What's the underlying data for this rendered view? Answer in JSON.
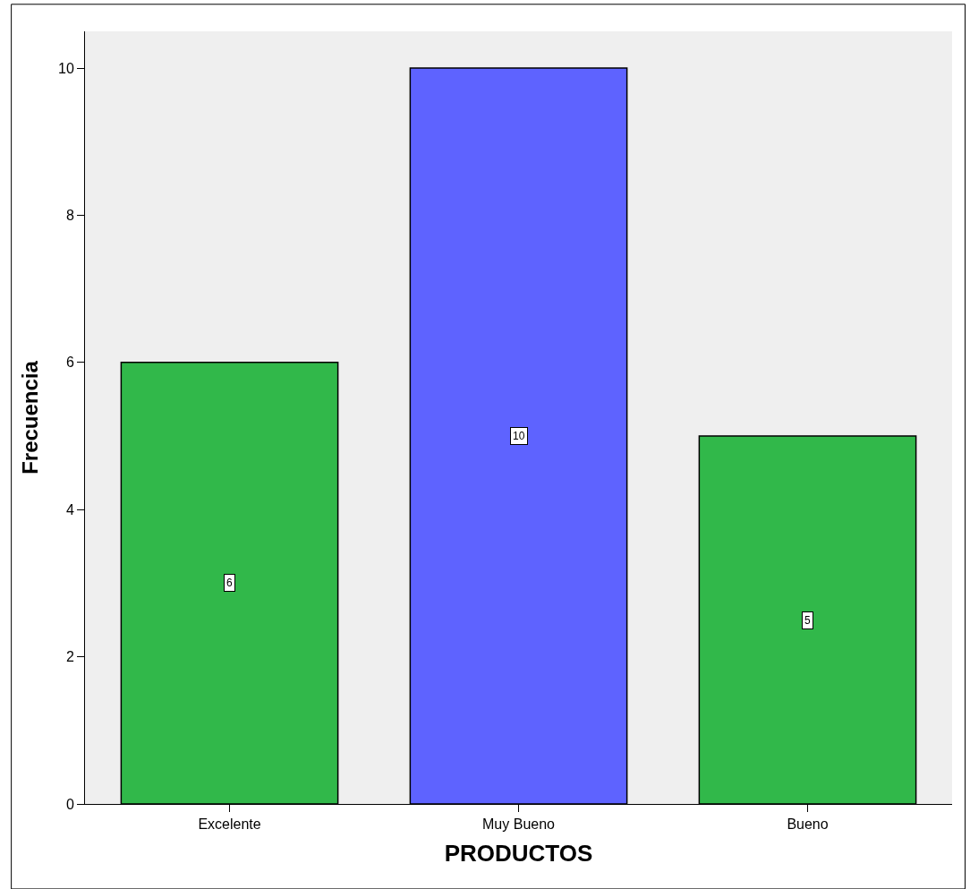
{
  "chart_data": {
    "type": "bar",
    "xlabel": "PRODUCTOS",
    "ylabel": "Frecuencia",
    "categories": [
      "Excelente",
      "Muy Bueno",
      "Bueno"
    ],
    "values": [
      6,
      10,
      5
    ],
    "colors": [
      "#31b84a",
      "#5e63ff",
      "#31b84a"
    ],
    "ylim": [
      0,
      10.5
    ],
    "yticks": [
      0,
      2,
      4,
      6,
      8,
      10
    ],
    "data_labels": true
  }
}
